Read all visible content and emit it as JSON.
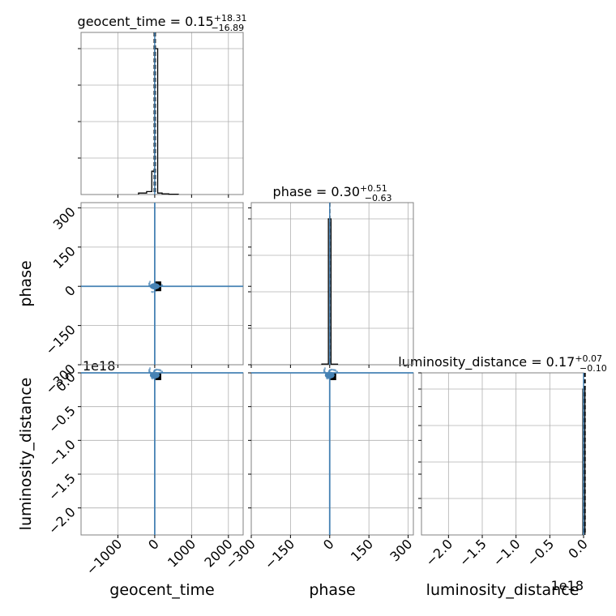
{
  "chart_data": {
    "type": "corner",
    "parameters": [
      "geocent_time",
      "phase",
      "luminosity_distance"
    ],
    "ranges": {
      "geocent_time": [
        -2000,
        2400
      ],
      "phase": [
        -300,
        320
      ],
      "luminosity_distance": [
        -2.4e+18,
        0
      ]
    },
    "truths": {
      "geocent_time": 0,
      "phase": 0,
      "luminosity_distance": 0
    },
    "scale_labels": {
      "luminosity_distance": "1e18"
    },
    "marginals": [
      {
        "param": "geocent_time",
        "title": {
          "main": "geocent_time = 0.15",
          "sup": "+18.31",
          "sub": "−16.89"
        },
        "median": 0.15,
        "q_upper": 18.31,
        "q_lower": 16.89,
        "bin_edges": [
          -440,
          -220,
          -80,
          0,
          80,
          200,
          380,
          640
        ],
        "counts": [
          0.01,
          0.02,
          0.16,
          1.0,
          0.01,
          0.005,
          0.002
        ]
      },
      {
        "param": "phase",
        "title": {
          "main": "phase = 0.30",
          "sup": "+0.51",
          "sub": "−0.63"
        },
        "median": 0.3,
        "q_upper": 0.51,
        "q_lower": 0.63,
        "bin_edges": [
          -30,
          -5,
          5,
          30
        ],
        "counts": [
          0.005,
          1.0,
          0.004
        ]
      },
      {
        "param": "luminosity_distance",
        "title": {
          "main": "luminosity_distance = 0.17",
          "sup": "+0.07",
          "sub": "−0.10"
        },
        "median": 0.17,
        "q_upper": 0.07,
        "q_lower": 0.1,
        "bin_edges": [
          -1e+16,
          2e+16
        ],
        "counts": [
          1.0
        ]
      }
    ],
    "ticks": {
      "geocent_time": {
        "values": [
          -1000,
          0,
          1000,
          2000
        ],
        "labels": [
          "−1000",
          "0",
          "1000",
          "2000"
        ]
      },
      "phase": {
        "values": [
          -300,
          -150,
          0,
          150,
          300
        ],
        "labels": [
          "−300",
          "−150",
          "0",
          "150",
          "300"
        ]
      },
      "phase_y": {
        "values": [
          -300,
          -150,
          0,
          150,
          300
        ],
        "labels": [
          "−300",
          "−150",
          "0",
          "150",
          "300"
        ]
      },
      "luminosity_distance_y": {
        "values": [
          0,
          -5e+17,
          -1e+18,
          -1.5e+18,
          -2e+18
        ],
        "labels": [
          "0.0",
          "−0.5",
          "−1.0",
          "−1.5",
          "−2.0"
        ]
      },
      "luminosity_distance_x": {
        "values": [
          -2e+18,
          -1.5e+18,
          -1e+18,
          -5e+17,
          0
        ],
        "labels": [
          "−2.0",
          "−1.5",
          "−1.0",
          "−0.5",
          "0.0"
        ]
      }
    },
    "colors": {
      "truth_line": "#4682b4",
      "histogram": "#000000",
      "grid": "#b0b0b0",
      "axes_border": "#808080",
      "scatter": "#4682b4"
    },
    "grid": true
  }
}
